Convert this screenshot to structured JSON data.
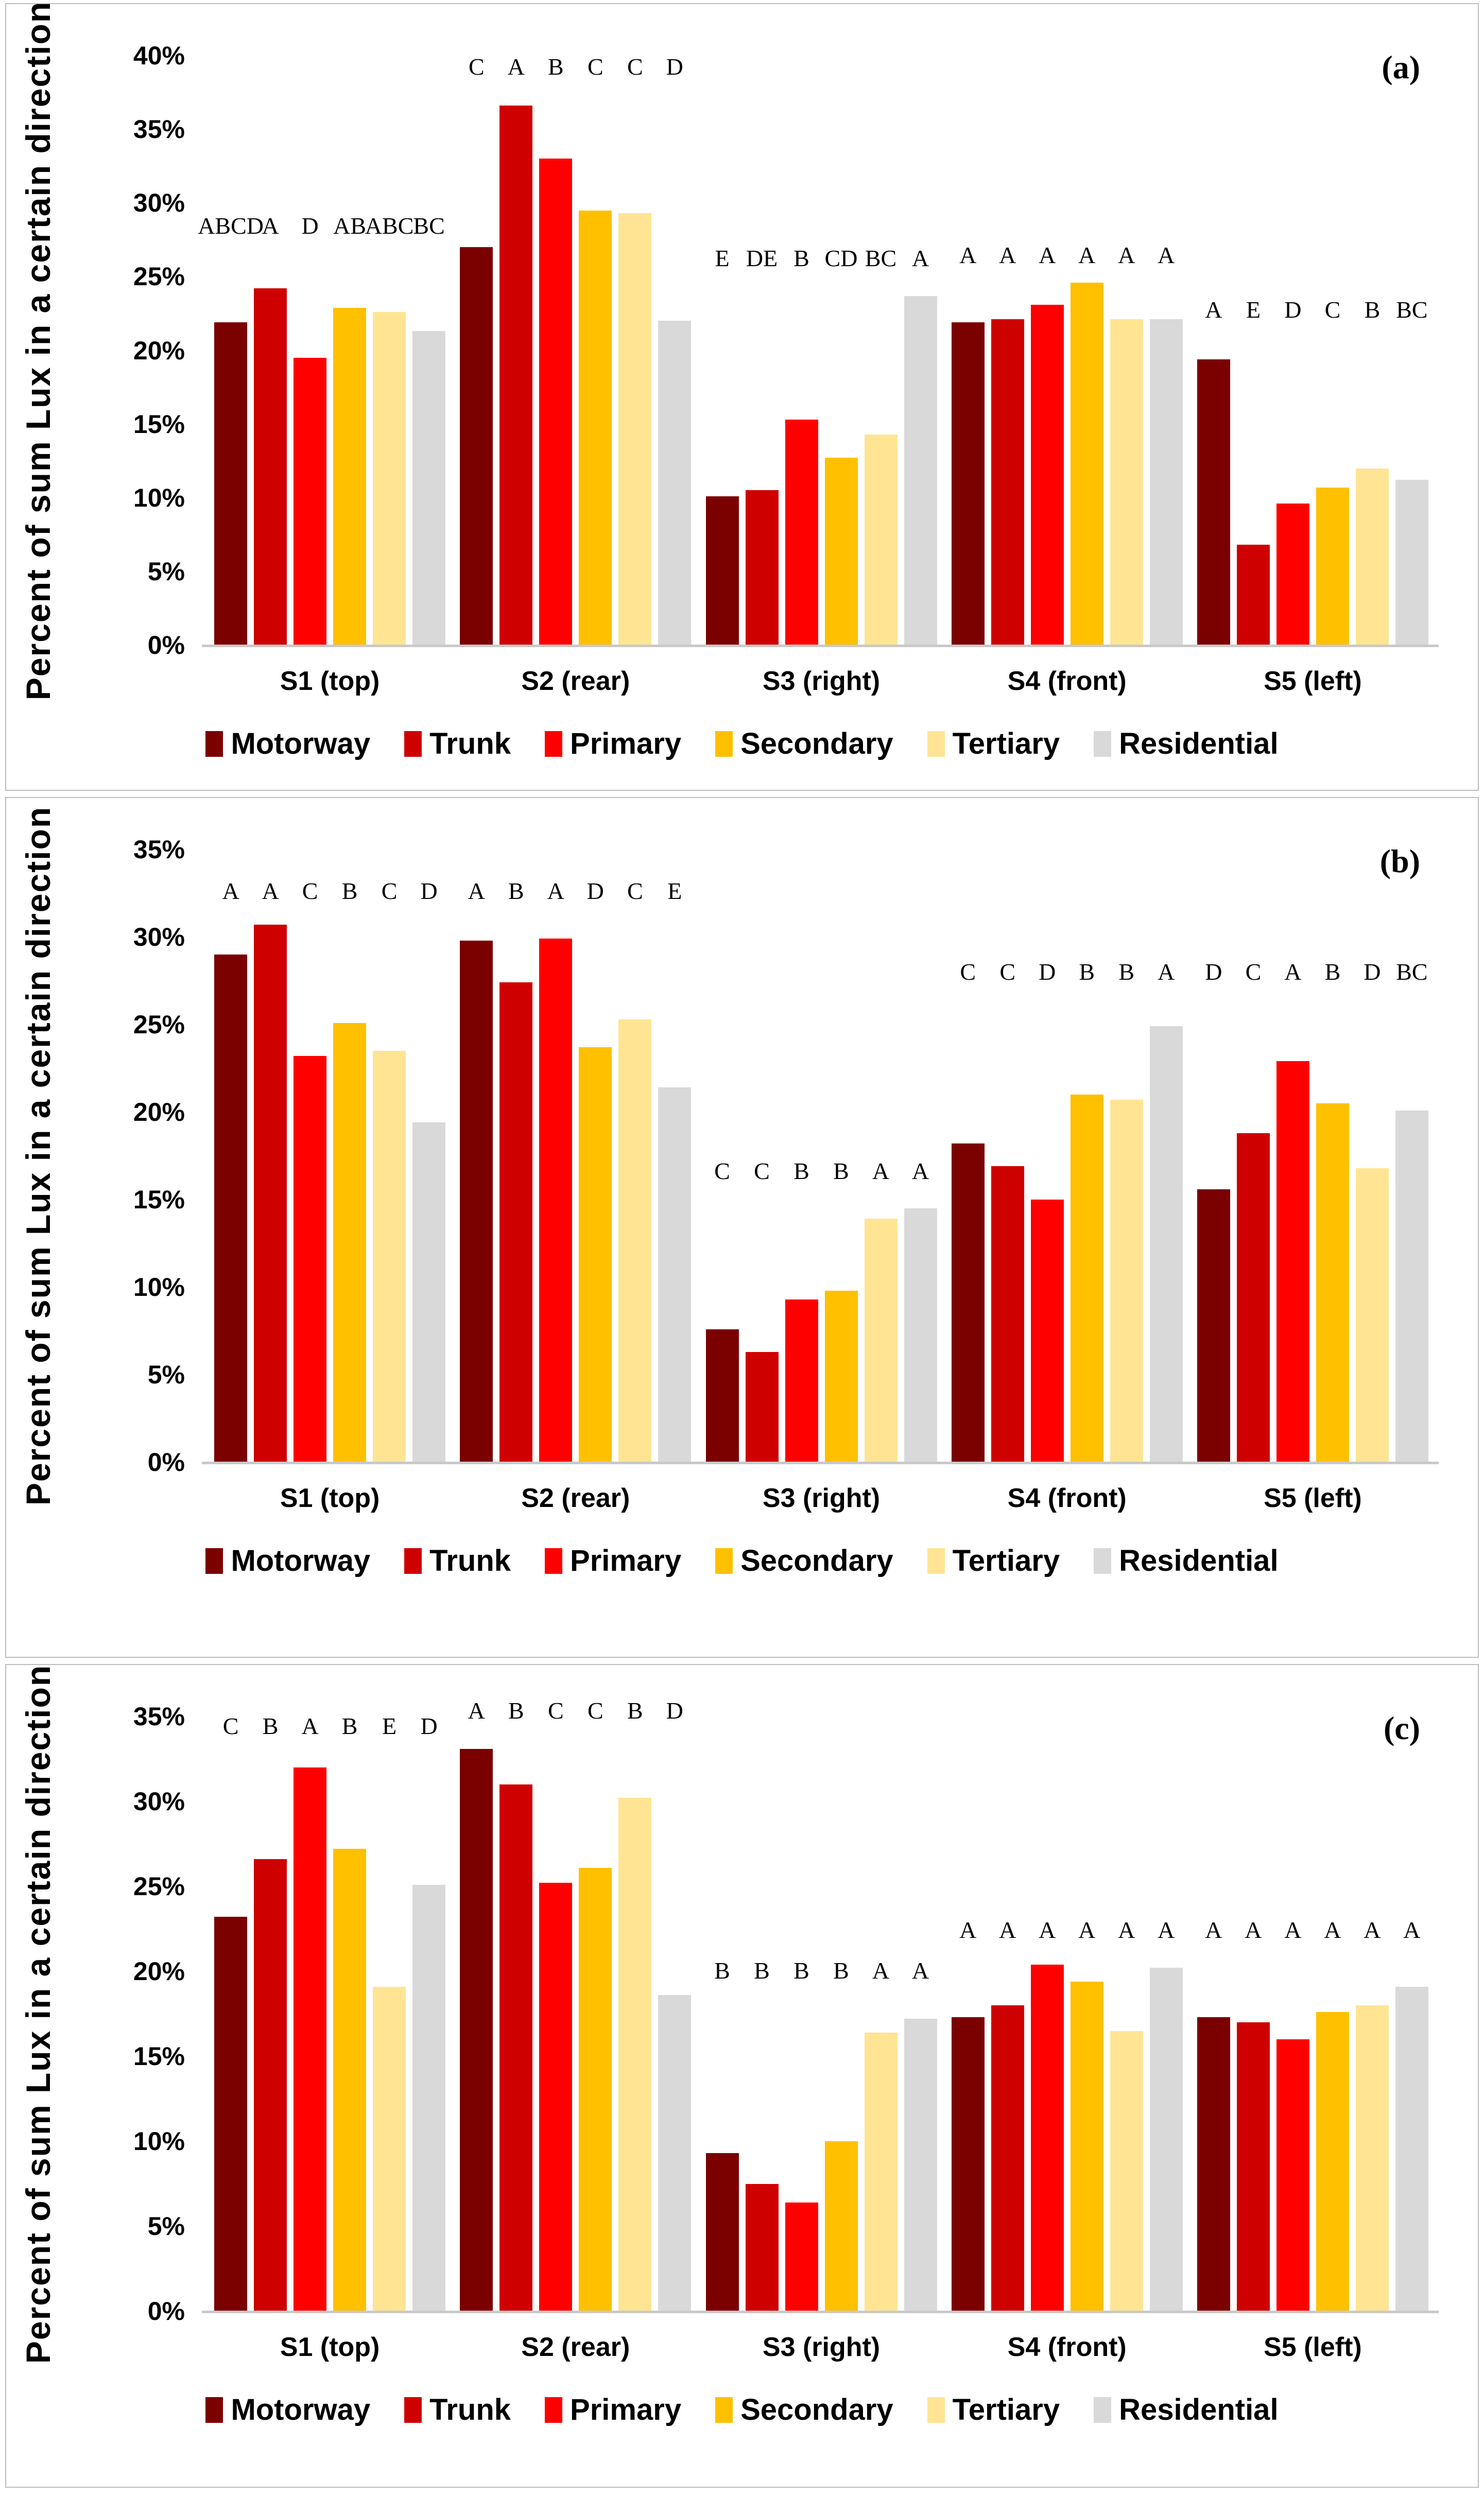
{
  "figure": {
    "ylabel": "Percent of sum Lux in a certain direction",
    "categories": [
      "S1 (top)",
      "S2 (rear)",
      "S3 (right)",
      "S4 (front)",
      "S5 (left)"
    ],
    "legend": [
      "Motorway",
      "Trunk",
      "Primary",
      "Secondary",
      "Tertiary",
      "Residential"
    ],
    "colors": {
      "motorway": "#7B0000",
      "trunk": "#CE0000",
      "primary": "#FF0000",
      "secondary": "#FFC000",
      "tertiary": "#FFE593",
      "residential": "#D9D9D9"
    }
  },
  "chart_data": [
    {
      "type": "bar",
      "panel_label": "(a)",
      "ylabel": "Percent of sum Lux in a certain direction",
      "categories": [
        "S1 (top)",
        "S2 (rear)",
        "S3 (right)",
        "S4 (front)",
        "S5 (left)"
      ],
      "ylim": [
        0,
        40
      ],
      "ytick_step": 5,
      "ytick_labels": [
        "0%",
        "5%",
        "10%",
        "15%",
        "20%",
        "25%",
        "30%",
        "35%",
        "40%"
      ],
      "grid": false,
      "legend_position": "bottom",
      "series": [
        {
          "name": "Motorway",
          "color": "#7B0000",
          "values": [
            21.9,
            27.0,
            10.1,
            21.9,
            19.4
          ]
        },
        {
          "name": "Trunk",
          "color": "#CE0000",
          "values": [
            24.2,
            36.6,
            10.5,
            22.1,
            6.8
          ]
        },
        {
          "name": "Primary",
          "color": "#FF0000",
          "values": [
            19.5,
            33.0,
            15.3,
            23.1,
            9.6
          ]
        },
        {
          "name": "Secondary",
          "color": "#FFC000",
          "values": [
            22.9,
            29.5,
            12.7,
            24.6,
            10.7
          ]
        },
        {
          "name": "Tertiary",
          "color": "#FFE593",
          "values": [
            22.6,
            29.3,
            14.3,
            22.1,
            12.0
          ]
        },
        {
          "name": "Residential",
          "color": "#D9D9D9",
          "values": [
            21.3,
            22.0,
            23.7,
            22.1,
            11.2
          ]
        }
      ],
      "significance_letters": [
        [
          "ABCD",
          "A",
          "D",
          "AB",
          "ABC",
          "BC"
        ],
        [
          "C",
          "A",
          "B",
          "C",
          "C",
          "D"
        ],
        [
          "E",
          "DE",
          "B",
          "CD",
          "BC",
          "A"
        ],
        [
          "A",
          "A",
          "A",
          "A",
          "A",
          "A"
        ],
        [
          "A",
          "E",
          "D",
          "C",
          "B",
          "BC"
        ]
      ],
      "letters_row_pct": [
        27.6,
        38.4,
        25.4,
        25.6,
        21.9
      ]
    },
    {
      "type": "bar",
      "panel_label": "(b)",
      "ylabel": "Percent of sum Lux in a certain direction",
      "categories": [
        "S1 (top)",
        "S2 (rear)",
        "S3 (right)",
        "S4 (front)",
        "S5 (left)"
      ],
      "ylim": [
        0,
        35
      ],
      "ytick_step": 5,
      "ytick_labels": [
        "0%",
        "5%",
        "10%",
        "15%",
        "20%",
        "25%",
        "30%",
        "35%"
      ],
      "grid": false,
      "legend_position": "bottom",
      "series": [
        {
          "name": "Motorway",
          "color": "#7B0000",
          "values": [
            29.0,
            29.8,
            7.6,
            18.2,
            15.6
          ]
        },
        {
          "name": "Trunk",
          "color": "#CE0000",
          "values": [
            30.7,
            27.4,
            6.3,
            16.9,
            18.8
          ]
        },
        {
          "name": "Primary",
          "color": "#FF0000",
          "values": [
            23.2,
            29.9,
            9.3,
            15.0,
            22.9
          ]
        },
        {
          "name": "Secondary",
          "color": "#FFC000",
          "values": [
            25.1,
            23.7,
            9.8,
            21.0,
            20.5
          ]
        },
        {
          "name": "Tertiary",
          "color": "#FFE593",
          "values": [
            23.5,
            25.3,
            13.9,
            20.7,
            16.8
          ]
        },
        {
          "name": "Residential",
          "color": "#D9D9D9",
          "values": [
            19.4,
            21.4,
            14.5,
            24.9,
            20.1
          ]
        }
      ],
      "significance_letters": [
        [
          "A",
          "A",
          "C",
          "B",
          "C",
          "D"
        ],
        [
          "A",
          "B",
          "A",
          "D",
          "C",
          "E"
        ],
        [
          "C",
          "C",
          "B",
          "B",
          "A",
          "A"
        ],
        [
          "C",
          "C",
          "D",
          "B",
          "B",
          "A"
        ],
        [
          "D",
          "C",
          "A",
          "B",
          "D",
          "BC"
        ]
      ],
      "letters_row_pct": [
        31.9,
        31.9,
        15.9,
        27.3,
        27.3
      ]
    },
    {
      "type": "bar",
      "panel_label": "(c)",
      "ylabel": "Percent of sum Lux in a certain direction",
      "categories": [
        "S1 (top)",
        "S2 (rear)",
        "S3 (right)",
        "S4 (front)",
        "S5 (left)"
      ],
      "ylim": [
        0,
        35
      ],
      "ytick_step": 5,
      "ytick_labels": [
        "0%",
        "5%",
        "10%",
        "15%",
        "20%",
        "25%",
        "30%",
        "35%"
      ],
      "grid": false,
      "legend_position": "bottom",
      "series": [
        {
          "name": "Motorway",
          "color": "#7B0000",
          "values": [
            23.2,
            33.1,
            9.3,
            17.3,
            17.3
          ]
        },
        {
          "name": "Trunk",
          "color": "#CE0000",
          "values": [
            26.6,
            31.0,
            7.5,
            18.0,
            17.0
          ]
        },
        {
          "name": "Primary",
          "color": "#FF0000",
          "values": [
            32.0,
            25.2,
            6.4,
            20.4,
            16.0
          ]
        },
        {
          "name": "Secondary",
          "color": "#FFC000",
          "values": [
            27.2,
            26.1,
            10.0,
            19.4,
            17.6
          ]
        },
        {
          "name": "Tertiary",
          "color": "#FFE593",
          "values": [
            19.1,
            30.2,
            16.4,
            16.5,
            18.0
          ]
        },
        {
          "name": "Residential",
          "color": "#D9D9D9",
          "values": [
            25.1,
            18.6,
            17.2,
            20.2,
            19.1
          ]
        }
      ],
      "significance_letters": [
        [
          "C",
          "B",
          "A",
          "B",
          "E",
          "D"
        ],
        [
          "A",
          "B",
          "C",
          "C",
          "B",
          "D"
        ],
        [
          "B",
          "B",
          "B",
          "B",
          "A",
          "A"
        ],
        [
          "A",
          "A",
          "A",
          "A",
          "A",
          "A"
        ],
        [
          "A",
          "A",
          "A",
          "A",
          "A",
          "A"
        ]
      ],
      "letters_row_pct": [
        33.7,
        34.6,
        19.3,
        21.7,
        21.7
      ]
    }
  ]
}
